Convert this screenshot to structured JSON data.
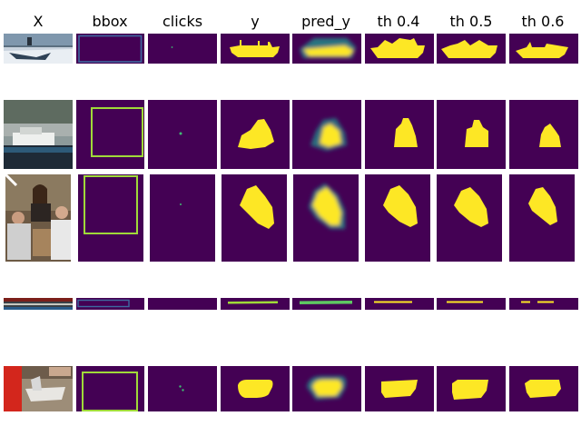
{
  "figure": {
    "columns": [
      "X",
      "bbox",
      "clicks",
      "y",
      "pred_y",
      "th 0.4",
      "th 0.5",
      "th 0.6"
    ],
    "colors": {
      "background": "#440154",
      "mask": "#fde725",
      "bbox_outline": "#a0da39",
      "click": "#3fbc73",
      "pred_mid": "#21918c"
    }
  }
}
